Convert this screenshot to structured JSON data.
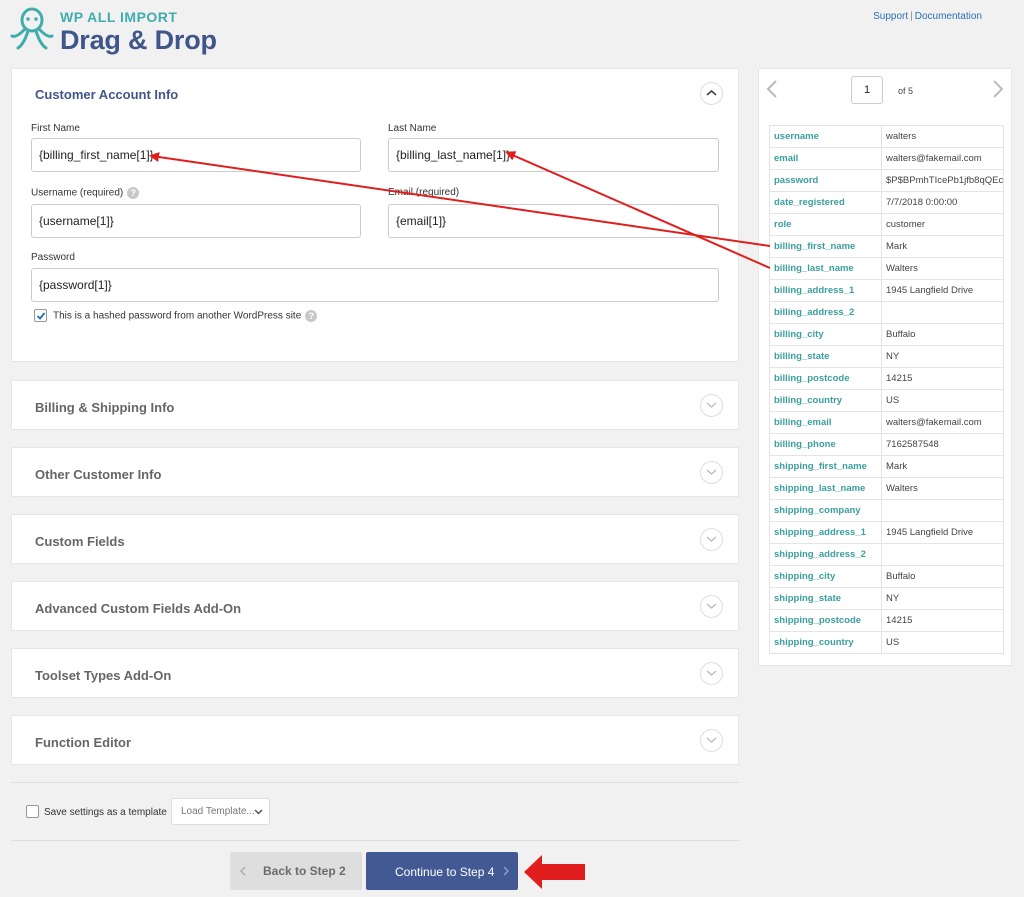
{
  "header": {
    "brand_top": "WP ALL IMPORT",
    "brand_main": "Drag & Drop",
    "support_link": "Support",
    "separator": "|",
    "docs_link": "Documentation"
  },
  "customer_account": {
    "title": "Customer Account Info",
    "first_name_label": "First Name",
    "first_name_value": "{billing_first_name[1]}",
    "last_name_label": "Last Name",
    "last_name_value": "{billing_last_name[1]}",
    "username_label": "Username (required)",
    "username_value": "{username[1]}",
    "email_label": "Email (required)",
    "email_value": "{email[1]}",
    "password_label": "Password",
    "password_value": "{password[1]}",
    "hashed_label": "This is a hashed password from another WordPress site",
    "hashed_checked": true
  },
  "sections": [
    {
      "title": "Billing & Shipping Info"
    },
    {
      "title": "Other Customer Info"
    },
    {
      "title": "Custom Fields"
    },
    {
      "title": "Advanced Custom Fields Add-On"
    },
    {
      "title": "Toolset Types Add-On"
    },
    {
      "title": "Function Editor"
    }
  ],
  "footer": {
    "save_template_label": "Save settings as a template",
    "load_template": "Load Template...",
    "back_button": "Back to Step 2",
    "continue_button": "Continue to Step 4"
  },
  "pager": {
    "current": "1",
    "total_label": "of 5"
  },
  "records": [
    {
      "key": "username",
      "value": "walters"
    },
    {
      "key": "email",
      "value": "walters@fakemail.com"
    },
    {
      "key": "password",
      "value": "$P$BPmhTIcePb1jfb8qQEc"
    },
    {
      "key": "date_registered",
      "value": "7/7/2018 0:00:00"
    },
    {
      "key": "role",
      "value": "customer"
    },
    {
      "key": "billing_first_name",
      "value": "Mark"
    },
    {
      "key": "billing_last_name",
      "value": "Walters"
    },
    {
      "key": "billing_address_1",
      "value": "1945 Langfield Drive"
    },
    {
      "key": "billing_address_2",
      "value": ""
    },
    {
      "key": "billing_city",
      "value": "Buffalo"
    },
    {
      "key": "billing_state",
      "value": "NY"
    },
    {
      "key": "billing_postcode",
      "value": "14215"
    },
    {
      "key": "billing_country",
      "value": "US"
    },
    {
      "key": "billing_email",
      "value": "walters@fakemail.com"
    },
    {
      "key": "billing_phone",
      "value": "7162587548"
    },
    {
      "key": "shipping_first_name",
      "value": "Mark"
    },
    {
      "key": "shipping_last_name",
      "value": "Walters"
    },
    {
      "key": "shipping_company",
      "value": ""
    },
    {
      "key": "shipping_address_1",
      "value": "1945 Langfield Drive"
    },
    {
      "key": "shipping_address_2",
      "value": ""
    },
    {
      "key": "shipping_city",
      "value": "Buffalo"
    },
    {
      "key": "shipping_state",
      "value": "NY"
    },
    {
      "key": "shipping_postcode",
      "value": "14215"
    },
    {
      "key": "shipping_country",
      "value": "US"
    }
  ],
  "colors": {
    "brand_teal": "#40acad",
    "brand_navy": "#40568a",
    "primary_button": "#425994",
    "annotation_red": "#e01e1e"
  }
}
